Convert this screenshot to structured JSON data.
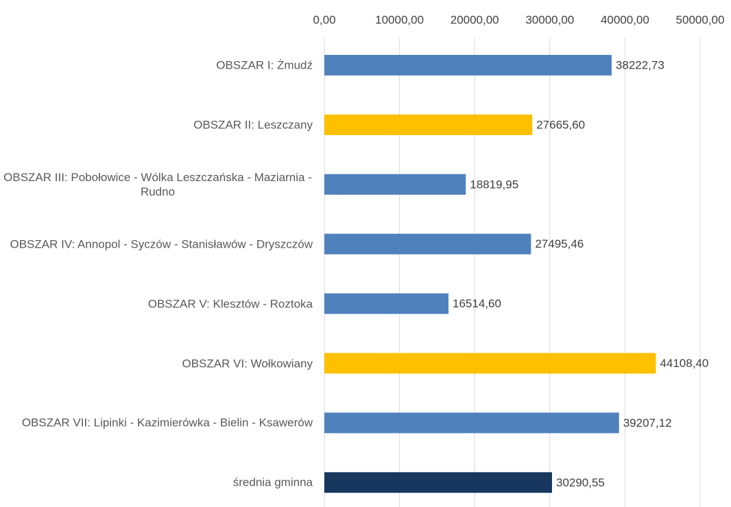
{
  "chart_data": {
    "type": "bar",
    "orientation": "horizontal",
    "categories": [
      "OBSZAR I: Żmudź",
      "OBSZAR II: Leszczany ",
      "OBSZAR III: Pobołowice - Wólka Leszczańska - Maziarnia - Rudno",
      "OBSZAR IV: Annopol - Syczów - Stanisławów - Dryszczów",
      "OBSZAR V: Klesztów - Roztoka",
      "OBSZAR VI: Wołkowiany ",
      "OBSZAR VII: Lipinki - Kazimierówka - Bielin - Ksawerów",
      "średnia gminna"
    ],
    "values": [
      38222.73,
      27665.6,
      18819.95,
      27495.46,
      16514.6,
      44108.4,
      39207.12,
      30290.55
    ],
    "value_labels": [
      "38222,73",
      "27665,60",
      "18819,95",
      "27495,46",
      "16514,60",
      "44108,40",
      "39207,12",
      "30290,55"
    ],
    "colors": [
      "#4f81bd",
      "#ffc000",
      "#4f81bd",
      "#4f81bd",
      "#4f81bd",
      "#ffc000",
      "#4f81bd",
      "#17375e"
    ],
    "xlim": [
      0,
      50000
    ],
    "xticks": [
      {
        "value": 0,
        "label": "0,00"
      },
      {
        "value": 10000,
        "label": "10000,00"
      },
      {
        "value": 20000,
        "label": "20000,00"
      },
      {
        "value": 30000,
        "label": "30000,00"
      },
      {
        "value": 40000,
        "label": "40000,00"
      },
      {
        "value": 50000,
        "label": "50000,00"
      }
    ],
    "grid": true
  }
}
